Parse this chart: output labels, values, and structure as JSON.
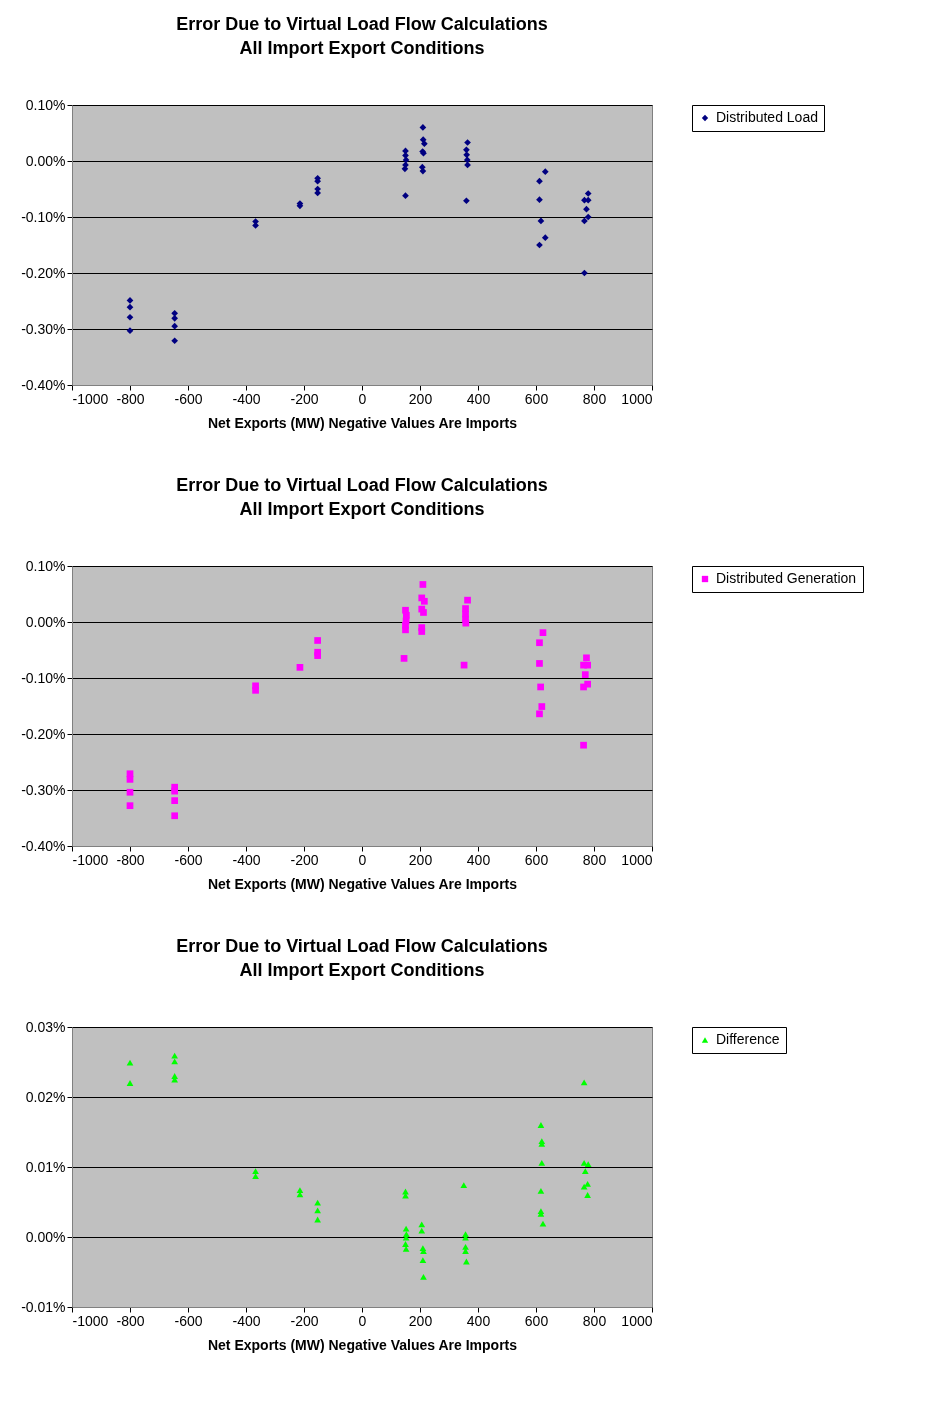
{
  "chart_data": [
    {
      "type": "scatter",
      "title": "Error Due to Virtual Load Flow Calculations",
      "subtitle": "All Import Export Conditions",
      "xlabel": "Net Exports (MW)  Negative Values Are Imports",
      "marker": "diamond",
      "grid": "y",
      "legend": "right",
      "xlim": [
        -1000,
        1000
      ],
      "xticks": [
        -1000,
        -800,
        -600,
        -400,
        -200,
        0,
        200,
        400,
        600,
        800,
        1000
      ],
      "ylim": [
        -0.4,
        0.1
      ],
      "yticks": [
        {
          "value": -0.4,
          "label": "-0.40%"
        },
        {
          "value": -0.3,
          "label": "-0.30%"
        },
        {
          "value": -0.2,
          "label": "-0.20%"
        },
        {
          "value": -0.1,
          "label": "-0.10%"
        },
        {
          "value": 0,
          "label": "0.00%"
        },
        {
          "value": 0.1,
          "label": "0.10%"
        }
      ],
      "series": [
        {
          "name": "Distributed Load",
          "color": "#000080",
          "x": [
            -800,
            -800,
            -800,
            -800,
            -646,
            -646,
            -646,
            -646,
            -367,
            -367,
            -214,
            -214,
            -153,
            -153,
            -153,
            -153,
            150,
            150,
            152,
            150,
            148,
            150,
            210,
            211,
            215,
            209,
            212,
            208,
            210,
            364,
            360,
            361,
            363,
            364,
            360,
            632,
            612,
            612,
            617,
            632,
            612,
            780,
            767,
            780,
            774,
            780,
            767,
            767
          ],
          "values": [
            -0.249,
            -0.261,
            -0.279,
            -0.303,
            -0.272,
            -0.281,
            -0.295,
            -0.321,
            -0.108,
            -0.115,
            -0.076,
            -0.08,
            -0.031,
            -0.036,
            -0.05,
            -0.057,
            0.018,
            0.01,
            0.002,
            -0.007,
            -0.014,
            -0.062,
            0.06,
            0.038,
            0.031,
            0.017,
            0.014,
            -0.011,
            -0.018,
            0.033,
            0.02,
            0.011,
            0.002,
            -0.007,
            -0.071,
            -0.019,
            -0.036,
            -0.069,
            -0.107,
            -0.137,
            -0.15,
            -0.058,
            -0.07,
            -0.07,
            -0.086,
            -0.1,
            -0.107,
            -0.2
          ]
        }
      ]
    },
    {
      "type": "scatter",
      "title": "Error Due to Virtual Load Flow Calculations",
      "subtitle": "All Import Export Conditions",
      "xlabel": "Net Exports (MW)  Negative Values Are Imports",
      "marker": "square",
      "grid": "y",
      "legend": "right",
      "xlim": [
        -1000,
        1000
      ],
      "xticks": [
        -1000,
        -800,
        -600,
        -400,
        -200,
        0,
        200,
        400,
        600,
        800,
        1000
      ],
      "ylim": [
        -0.4,
        0.1
      ],
      "yticks": [
        {
          "value": -0.4,
          "label": "-0.40%"
        },
        {
          "value": -0.3,
          "label": "-0.30%"
        },
        {
          "value": -0.2,
          "label": "-0.20%"
        },
        {
          "value": -0.1,
          "label": "-0.10%"
        },
        {
          "value": 0,
          "label": "0.00%"
        },
        {
          "value": 0.1,
          "label": "0.10%"
        }
      ],
      "series": [
        {
          "name": "Distributed Generation",
          "color": "#ff00ff",
          "x": [
            -800,
            -800,
            -800,
            -800,
            -646,
            -646,
            -646,
            -646,
            -367,
            -367,
            -214,
            -153,
            -153,
            -153,
            150,
            153,
            152,
            150,
            150,
            145,
            210,
            206,
            215,
            206,
            212,
            206,
            206,
            364,
            357,
            357,
            357,
            358,
            352,
            624,
            612,
            612,
            616,
            620,
            612,
            774,
            764,
            778,
            770,
            778,
            764,
            764
          ],
          "values": [
            -0.271,
            -0.281,
            -0.304,
            -0.328,
            -0.295,
            -0.302,
            -0.319,
            -0.346,
            -0.114,
            -0.122,
            -0.081,
            -0.033,
            -0.054,
            -0.06,
            0.021,
            0.012,
            0.002,
            -0.006,
            -0.014,
            -0.065,
            0.067,
            0.043,
            0.037,
            0.023,
            0.017,
            -0.01,
            -0.017,
            0.039,
            0.024,
            0.014,
            0.005,
            -0.002,
            -0.077,
            -0.019,
            -0.037,
            -0.074,
            -0.116,
            -0.151,
            -0.164,
            -0.064,
            -0.077,
            -0.077,
            -0.094,
            -0.111,
            -0.116,
            -0.22
          ]
        }
      ]
    },
    {
      "type": "scatter",
      "title": "Error Due to Virtual Load Flow Calculations",
      "subtitle": "All Import Export Conditions",
      "xlabel": "Net Exports (MW)  Negative Values Are Imports",
      "marker": "triangle",
      "grid": "y",
      "legend": "right",
      "xlim": [
        -1000,
        1000
      ],
      "xticks": [
        -1000,
        -800,
        -600,
        -400,
        -200,
        0,
        200,
        400,
        600,
        800,
        1000
      ],
      "ylim": [
        -0.01,
        0.03
      ],
      "yticks": [
        {
          "value": -0.01,
          "label": "-0.01%"
        },
        {
          "value": 0,
          "label": "0.00%"
        },
        {
          "value": 0.01,
          "label": "0.01%"
        },
        {
          "value": 0.02,
          "label": "0.02%"
        },
        {
          "value": 0.03,
          "label": "0.03%"
        }
      ],
      "series": [
        {
          "name": "Difference",
          "color": "#00ff00",
          "x": [
            -800,
            -800,
            -646,
            -646,
            -646,
            -646,
            -367,
            -367,
            -214,
            -214,
            -153,
            -153,
            -153,
            150,
            150,
            152,
            153,
            152,
            150,
            152,
            206,
            206,
            210,
            212,
            210,
            212,
            351,
            357,
            357,
            357,
            357,
            360,
            617,
            620,
            620,
            620,
            617,
            617,
            617,
            624,
            766,
            766,
            780,
            770,
            778,
            766,
            778
          ],
          "values": [
            0.0249,
            0.022,
            0.0259,
            0.0251,
            0.023,
            0.0225,
            0.0094,
            0.0087,
            0.0067,
            0.0061,
            0.0049,
            0.0038,
            0.0025,
            0.0065,
            0.0059,
            0.0012,
            0.0004,
            -0.0001,
            -0.001,
            -0.0017,
            0.0018,
            0.0009,
            -0.0016,
            -0.002,
            -0.0033,
            -0.0057,
            0.0074,
            0.0004,
            -0.0001,
            -0.0014,
            -0.002,
            -0.0035,
            0.016,
            0.0137,
            0.0133,
            0.0106,
            0.0066,
            0.0037,
            0.0033,
            0.0019,
            0.0221,
            0.0106,
            0.0104,
            0.0094,
            0.0076,
            0.0072,
            0.006
          ]
        }
      ]
    }
  ]
}
